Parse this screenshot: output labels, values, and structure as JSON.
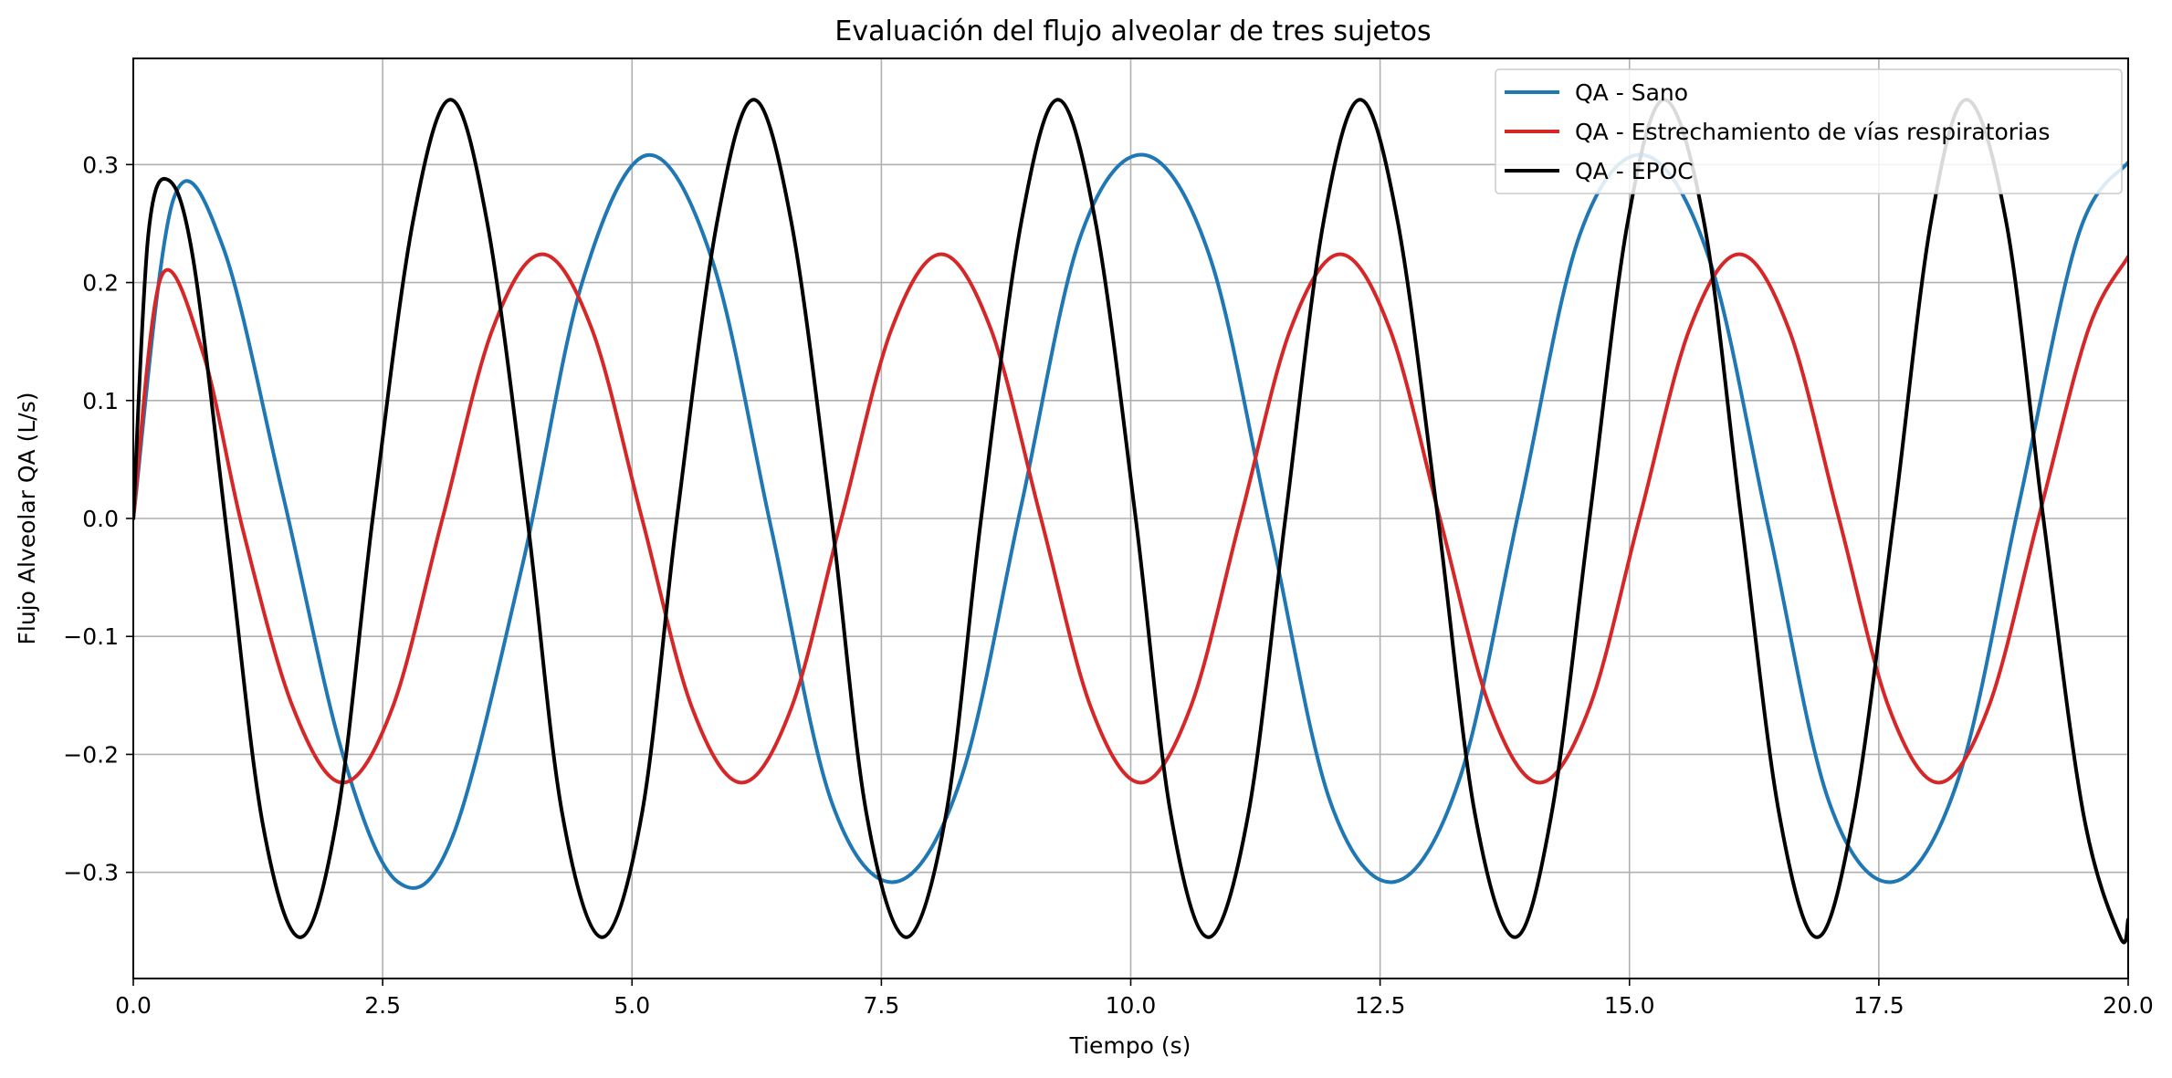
{
  "chart_data": {
    "type": "line",
    "title": "Evaluación del flujo alveolar de tres sujetos",
    "xlabel": "Tiempo (s)",
    "ylabel": "Flujo Alveolar QA (L/s)",
    "xlim": [
      0,
      20
    ],
    "ylim": [
      -0.39,
      0.39
    ],
    "xticks": [
      0,
      2.5,
      5,
      7.5,
      10,
      12.5,
      15,
      17.5,
      20
    ],
    "xtick_labels": [
      "0.0",
      "2.5",
      "5.0",
      "7.5",
      "10.0",
      "12.5",
      "15.0",
      "17.5",
      "20.0"
    ],
    "yticks": [
      -0.3,
      -0.2,
      -0.1,
      0.0,
      0.1,
      0.2,
      0.3
    ],
    "ytick_labels": [
      "−0.3",
      "−0.2",
      "−0.1",
      "0.0",
      "0.1",
      "0.2",
      "0.3"
    ],
    "grid": true,
    "legend_position": "top-right",
    "series": [
      {
        "name": "QA - Sano",
        "color": "#1f77b4",
        "x": [
          0,
          0.4,
          0.9,
          1.5,
          2.1,
          2.65,
          3.2,
          3.9,
          4.5,
          5.15,
          5.8,
          6.4,
          7.0,
          7.65,
          8.3,
          8.9,
          9.5,
          10.15,
          10.8,
          11.4,
          12.0,
          12.65,
          13.3,
          13.9,
          14.5,
          15.15,
          15.8,
          16.4,
          17.0,
          17.65,
          18.3,
          18.9,
          19.5,
          20.0
        ],
        "y": [
          0.0,
          0.27,
          0.23,
          0.02,
          -0.2,
          -0.308,
          -0.27,
          -0.04,
          0.2,
          0.308,
          0.22,
          -0.01,
          -0.24,
          -0.308,
          -0.22,
          0.01,
          0.24,
          0.308,
          0.22,
          -0.01,
          -0.24,
          -0.308,
          -0.22,
          0.01,
          0.24,
          0.308,
          0.22,
          -0.01,
          -0.24,
          -0.308,
          -0.22,
          0.01,
          0.24,
          0.302
        ]
      },
      {
        "name": "QA - Estrechamiento de vías respiratorias",
        "color": "#d62728",
        "x": [
          0,
          0.28,
          0.7,
          1.1,
          1.6,
          2.1,
          2.6,
          3.1,
          3.6,
          4.1,
          4.6,
          5.1,
          5.6,
          6.1,
          6.6,
          7.1,
          7.6,
          8.1,
          8.6,
          9.1,
          9.6,
          10.1,
          10.6,
          11.1,
          11.6,
          12.1,
          12.6,
          13.1,
          13.6,
          14.1,
          14.6,
          15.1,
          15.6,
          16.1,
          16.6,
          17.1,
          17.6,
          18.1,
          18.6,
          19.1,
          19.6,
          20.0
        ],
        "y": [
          0.0,
          0.205,
          0.14,
          -0.01,
          -0.16,
          -0.224,
          -0.16,
          0.0,
          0.16,
          0.224,
          0.16,
          0.0,
          -0.16,
          -0.224,
          -0.16,
          0.0,
          0.16,
          0.224,
          0.16,
          0.0,
          -0.16,
          -0.224,
          -0.16,
          0.0,
          0.16,
          0.224,
          0.16,
          0.0,
          -0.16,
          -0.224,
          -0.16,
          0.0,
          0.16,
          0.224,
          0.16,
          0.0,
          -0.16,
          -0.224,
          -0.16,
          0.0,
          0.16,
          0.222
        ]
      },
      {
        "name": "QA - EPOC",
        "color": "#000000",
        "x": [
          0,
          0.15,
          0.35,
          0.6,
          0.95,
          1.3,
          1.68,
          2.05,
          2.4,
          2.8,
          3.18,
          3.55,
          3.95,
          4.3,
          4.7,
          5.1,
          5.45,
          5.85,
          6.22,
          6.6,
          7.0,
          7.35,
          7.75,
          8.15,
          8.5,
          8.9,
          9.27,
          9.65,
          10.05,
          10.4,
          10.78,
          11.18,
          11.55,
          11.93,
          12.3,
          12.68,
          13.08,
          13.45,
          13.85,
          14.22,
          14.6,
          14.98,
          15.35,
          15.75,
          16.12,
          16.5,
          16.88,
          17.25,
          17.65,
          18.02,
          18.38,
          18.78,
          19.15,
          19.55,
          19.92,
          20.0
        ],
        "y": [
          0.0,
          0.24,
          0.287,
          0.22,
          -0.02,
          -0.26,
          -0.355,
          -0.25,
          0.0,
          0.25,
          0.355,
          0.25,
          0.0,
          -0.25,
          -0.355,
          -0.25,
          0.0,
          0.25,
          0.355,
          0.25,
          0.0,
          -0.25,
          -0.355,
          -0.25,
          0.0,
          0.25,
          0.355,
          0.25,
          0.0,
          -0.25,
          -0.355,
          -0.25,
          0.0,
          0.25,
          0.355,
          0.25,
          0.0,
          -0.25,
          -0.355,
          -0.25,
          0.0,
          0.25,
          0.355,
          0.25,
          0.0,
          -0.25,
          -0.355,
          -0.25,
          0.0,
          0.25,
          0.355,
          0.25,
          0.0,
          -0.25,
          -0.355,
          -0.34
        ]
      }
    ]
  }
}
